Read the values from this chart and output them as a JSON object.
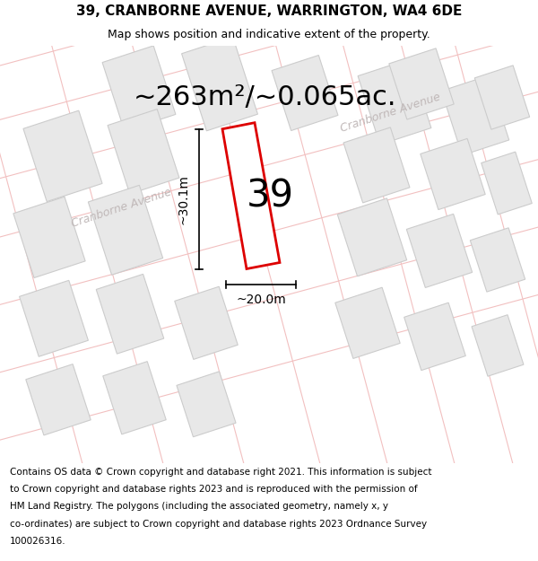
{
  "title": "39, CRANBORNE AVENUE, WARRINGTON, WA4 6DE",
  "subtitle": "Map shows position and indicative extent of the property.",
  "area_text": "~263m²/~0.065ac.",
  "number_label": "39",
  "dim_width": "~20.0m",
  "dim_height": "~30.1m",
  "footer_lines": [
    "Contains OS data © Crown copyright and database right 2021. This information is subject",
    "to Crown copyright and database rights 2023 and is reproduced with the permission of",
    "HM Land Registry. The polygons (including the associated geometry, namely x, y",
    "co-ordinates) are subject to Crown copyright and database rights 2023 Ordnance Survey",
    "100026316."
  ],
  "bg_color": "#ffffff",
  "map_bg": "#ffffff",
  "road_color": "#f2c0c0",
  "parcel_line_color": "#e8b0b0",
  "building_fill": "#e8e8e8",
  "building_edge": "#cccccc",
  "plot_edge": "#dd0000",
  "plot_fill": "#ffffff",
  "street_label_color": "#c0b8b8",
  "title_fontsize": 11,
  "subtitle_fontsize": 9,
  "area_fontsize": 22,
  "number_fontsize": 30,
  "footer_fontsize": 7.5,
  "street_label_fontsize": 9,
  "dim_fontsize": 10
}
